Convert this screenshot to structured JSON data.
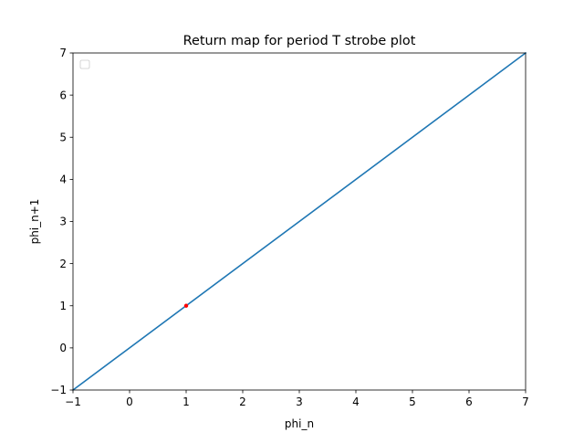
{
  "chart_data": {
    "type": "line",
    "title": "Return map for period T strobe plot",
    "xlabel": "phi_n",
    "ylabel": "phi_n+1",
    "xlim": [
      -1,
      7
    ],
    "ylim": [
      -1,
      7
    ],
    "xticks": [
      -1,
      0,
      1,
      2,
      3,
      4,
      5,
      6,
      7
    ],
    "yticks": [
      -1,
      0,
      1,
      2,
      3,
      4,
      5,
      6,
      7
    ],
    "grid": false,
    "legend": {
      "placement": "top-left",
      "entries": []
    },
    "series": [
      {
        "kind": "line",
        "color": "#1f77b4",
        "x": [
          -1,
          7
        ],
        "y": [
          -1,
          7
        ]
      },
      {
        "kind": "scatter",
        "color": "#ff0000",
        "x": [
          1
        ],
        "y": [
          1
        ]
      }
    ]
  }
}
